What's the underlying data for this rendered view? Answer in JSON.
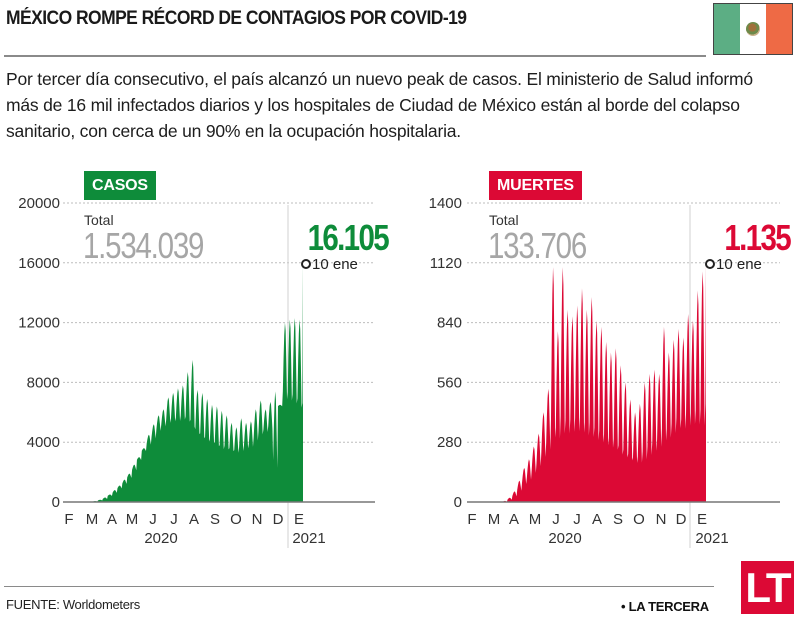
{
  "header": {
    "title": "MÉXICO ROMPE RÉCORD DE CONTAGIOS POR COVID-19",
    "flag_icon": "mexico-flag-icon",
    "intro": "Por tercer día consecutivo, el país alcanzó un nuevo peak de casos. El ministerio de Salud informó más de 16 mil infectados diarios y los hospitales de Ciudad de México están al borde del colapso sanitario, con cerca de un 90% en la ocupación hospitalaria."
  },
  "footer": {
    "source": "FUENTE: Worldometers",
    "brand": "• LA TERCERA",
    "logo": "LT"
  },
  "colors": {
    "casos": "#0e8c3a",
    "muertes": "#dc0935",
    "total_gray": "#a6a6a6"
  },
  "chart_data": [
    {
      "type": "area",
      "badge": "CASOS",
      "title": "Casos diarios COVID-19 México",
      "total_label": "Total",
      "total_value": "1.534.039",
      "last_value": "16.105",
      "last_date": "10 ene",
      "ylim": [
        0,
        20000
      ],
      "yticks": [
        "0",
        "4000",
        "8000",
        "12000",
        "16000",
        "20000"
      ],
      "ytick_values": [
        0,
        4000,
        8000,
        12000,
        16000,
        20000
      ],
      "xticks": [
        "F",
        "M",
        "A",
        "M",
        "J",
        "J",
        "A",
        "S",
        "O",
        "N",
        "D",
        "E"
      ],
      "year_labels": [
        "2020",
        "2021"
      ],
      "grid": true,
      "x_start": "2020-02-01",
      "x_end": "2021-01-10",
      "weekly_peaks": [
        0,
        0,
        0,
        0,
        5,
        20,
        60,
        150,
        300,
        500,
        800,
        1100,
        1500,
        1900,
        2500,
        3000,
        3600,
        4500,
        5200,
        5800,
        6200,
        7000,
        7300,
        7600,
        7800,
        8700,
        9500,
        7500,
        7300,
        6900,
        6500,
        6400,
        6100,
        5800,
        5300,
        5000,
        5600,
        5300,
        5400,
        6200,
        6800,
        6200,
        6700,
        7400,
        6500,
        12000,
        12200,
        12300,
        12200,
        12400,
        16105
      ],
      "weekly_troughs": [
        0,
        0,
        0,
        0,
        0,
        10,
        30,
        100,
        200,
        400,
        600,
        900,
        1200,
        1600,
        2100,
        2800,
        3400,
        3800,
        4200,
        4700,
        5000,
        5200,
        5300,
        5300,
        5400,
        5200,
        4800,
        4400,
        4100,
        3900,
        3800,
        3600,
        3400,
        3400,
        3300,
        3200,
        3300,
        3500,
        3600,
        4000,
        4400,
        4600,
        4800,
        2000,
        6400,
        6600,
        6500,
        6300,
        6000,
        5600,
        6000
      ]
    },
    {
      "type": "area",
      "badge": "MUERTES",
      "title": "Muertes diarias COVID-19 México",
      "total_label": "Total",
      "total_value": "133.706",
      "last_value": "1.135",
      "last_date": "10 ene",
      "ylim": [
        0,
        1400
      ],
      "yticks": [
        "0",
        "280",
        "560",
        "840",
        "1120",
        "1400"
      ],
      "ytick_values": [
        0,
        280,
        560,
        840,
        1120,
        1400
      ],
      "xticks": [
        "F",
        "M",
        "A",
        "M",
        "J",
        "J",
        "A",
        "S",
        "O",
        "N",
        "D",
        "E"
      ],
      "year_labels": [
        "2020",
        "2021"
      ],
      "grid": true,
      "x_start": "2020-02-01",
      "x_end": "2021-01-10",
      "weekly_peaks": [
        0,
        0,
        0,
        0,
        0,
        0,
        0,
        5,
        20,
        50,
        100,
        160,
        200,
        260,
        320,
        420,
        530,
        1100,
        800,
        1100,
        900,
        870,
        920,
        1000,
        900,
        960,
        850,
        820,
        750,
        700,
        720,
        640,
        560,
        480,
        420,
        460,
        560,
        600,
        620,
        600,
        820,
        700,
        760,
        810,
        770,
        880,
        850,
        990,
        1080,
        1135,
        1135
      ],
      "weekly_troughs": [
        0,
        0,
        0,
        0,
        0,
        0,
        0,
        0,
        10,
        25,
        50,
        80,
        100,
        130,
        160,
        200,
        230,
        260,
        270,
        280,
        290,
        300,
        300,
        290,
        280,
        270,
        260,
        250,
        240,
        230,
        220,
        200,
        190,
        180,
        170,
        170,
        180,
        200,
        220,
        240,
        260,
        280,
        300,
        320,
        320,
        330,
        340,
        330,
        320,
        340,
        360
      ]
    }
  ]
}
